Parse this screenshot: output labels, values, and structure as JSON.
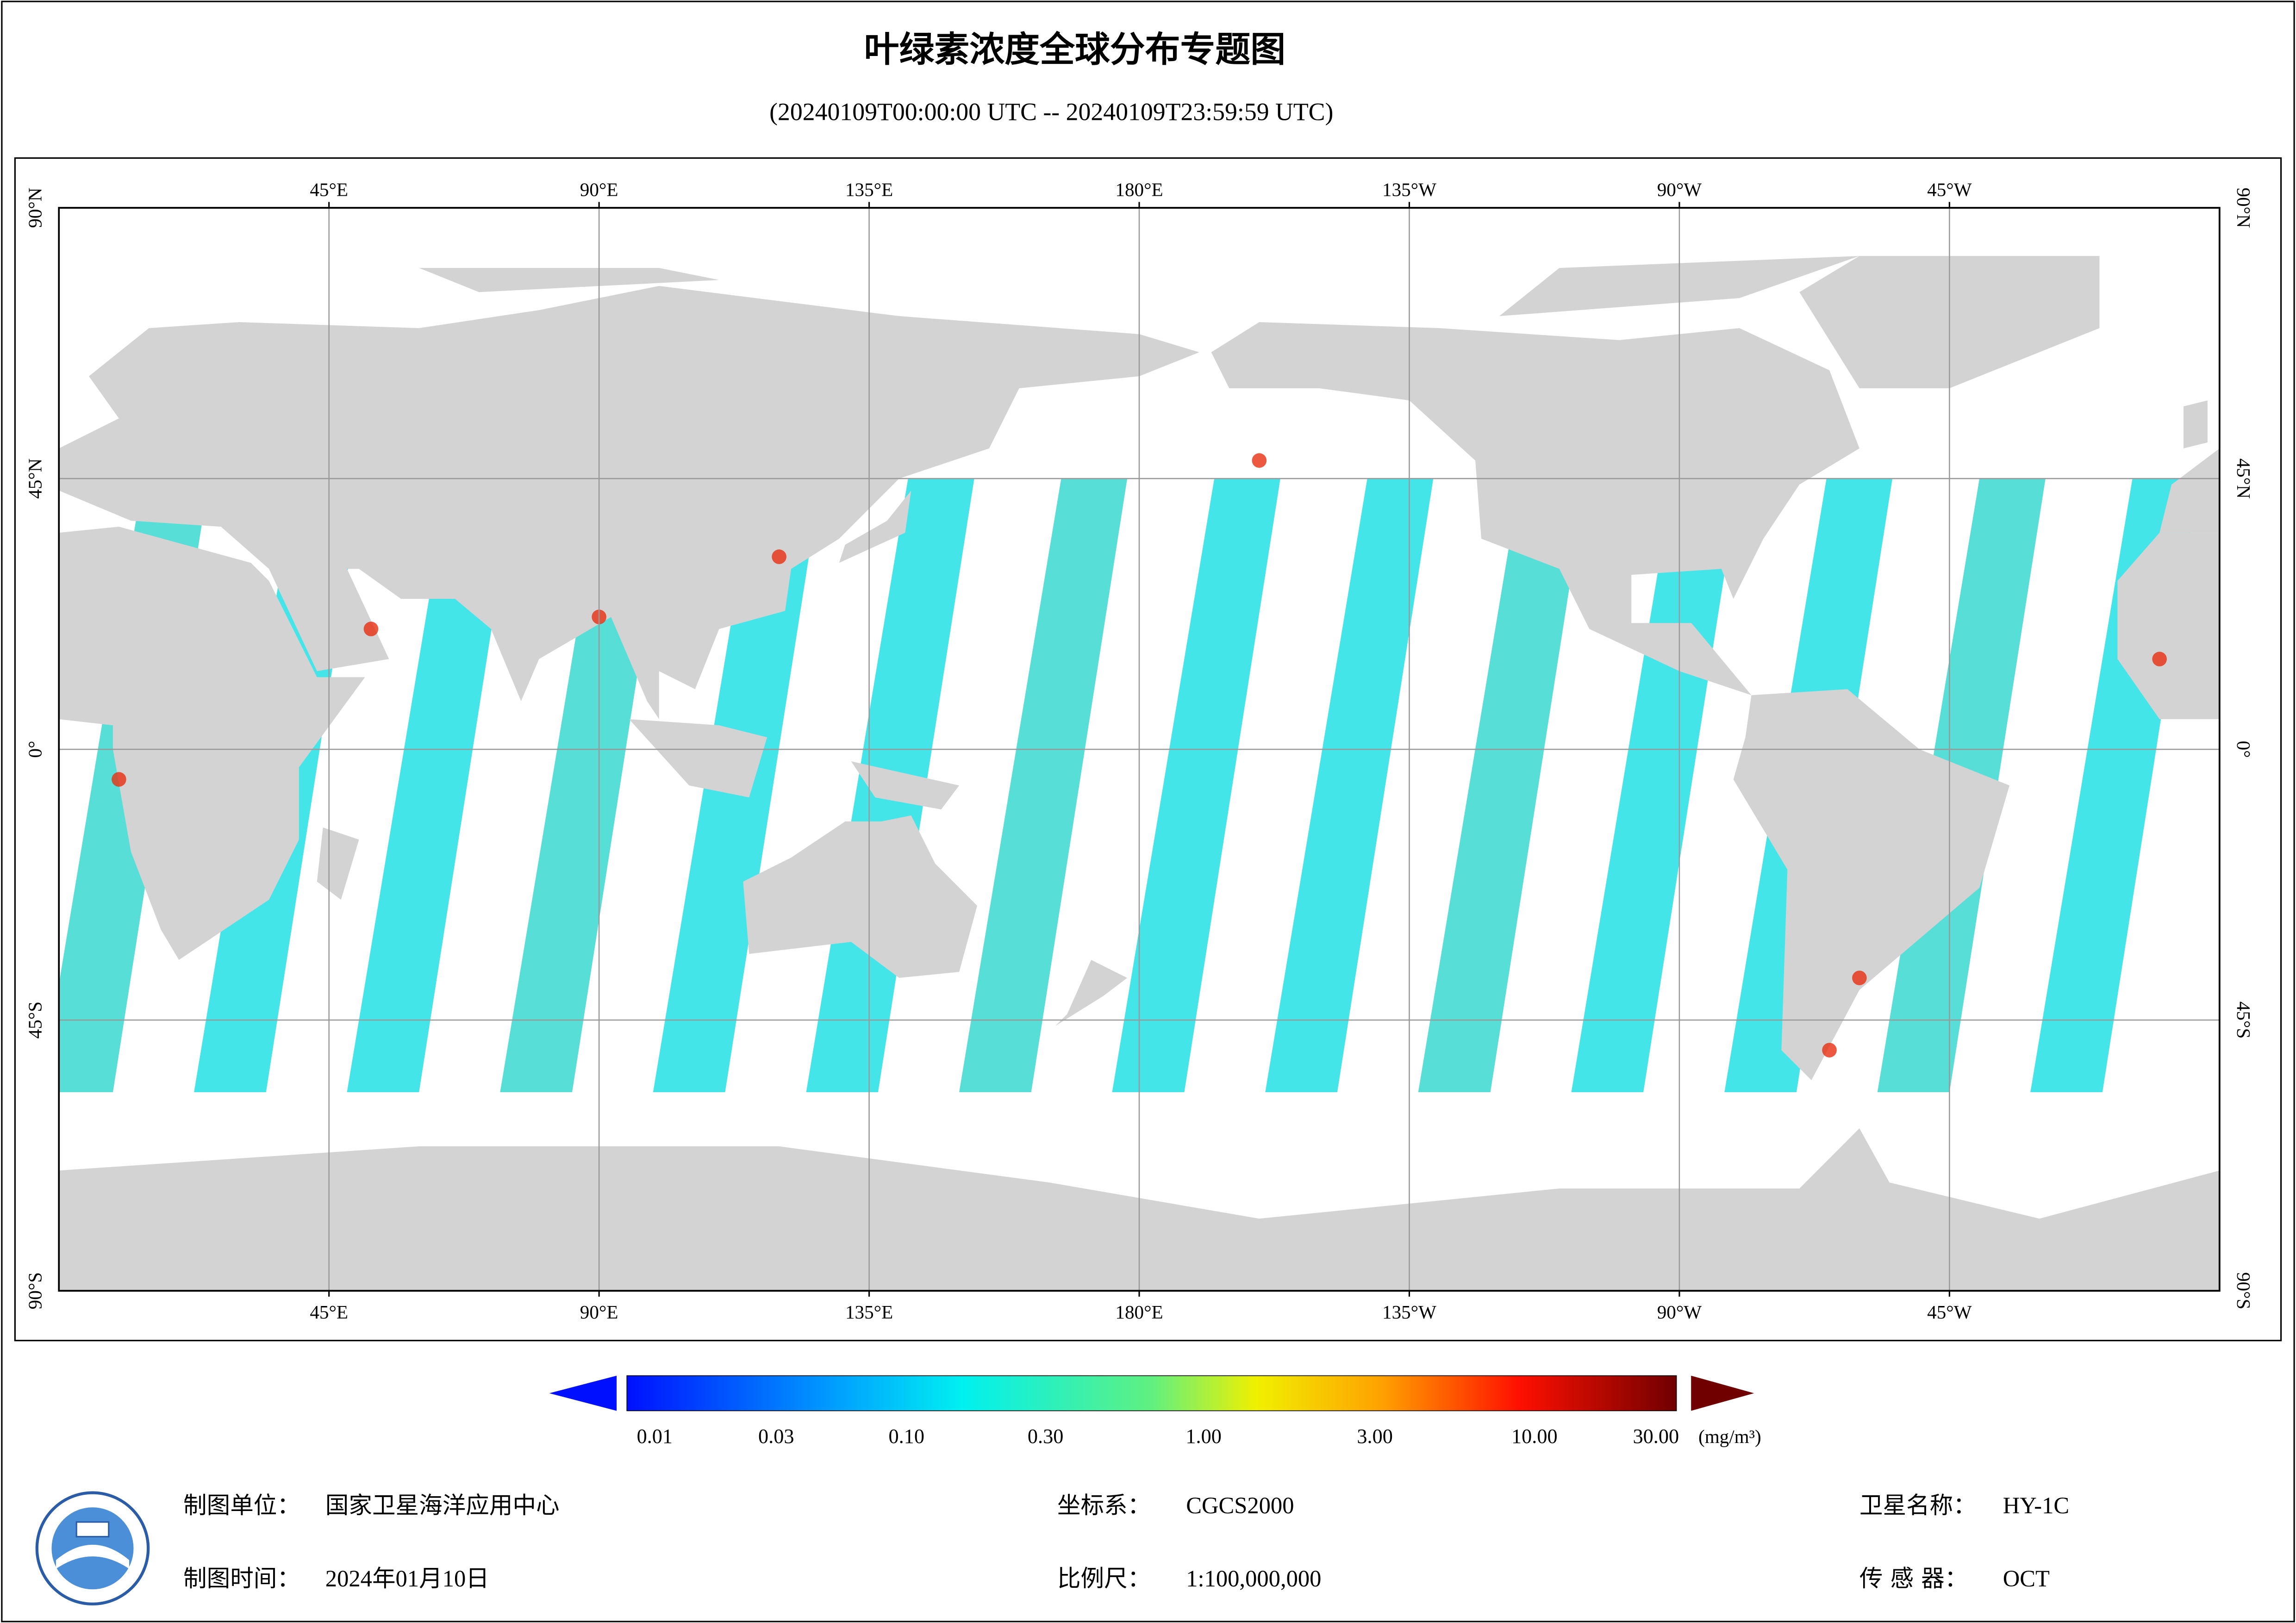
{
  "title": "叶绿素浓度全球分布专题图",
  "subtitle": "(20240109T00:00:00 UTC -- 20240109T23:59:59 UTC)",
  "map": {
    "lon_labels": [
      "45°E",
      "90°E",
      "135°E",
      "180°E",
      "135°W",
      "90°W",
      "45°W"
    ],
    "lat_labels": [
      "90°N",
      "45°N",
      "0°",
      "45°S",
      "90°S"
    ]
  },
  "colorbar": {
    "ticks": [
      "0.01",
      "0.03",
      "0.10",
      "0.30",
      "1.00",
      "3.00",
      "10.00",
      "30.00"
    ],
    "unit": "(mg/m³)"
  },
  "footer": {
    "unit_label": "制图单位：",
    "unit_value": "国家卫星海洋应用中心",
    "time_label": "制图时间：",
    "time_value": "2024年01月10日",
    "crs_label": "坐标系：",
    "crs_value": "CGCS2000",
    "scale_label": "比例尺：",
    "scale_value": "1:100,000,000",
    "sat_label": "卫星名称：",
    "sat_value": "HY-1C",
    "sensor_label": "传 感 器：",
    "sensor_value": "OCT"
  }
}
